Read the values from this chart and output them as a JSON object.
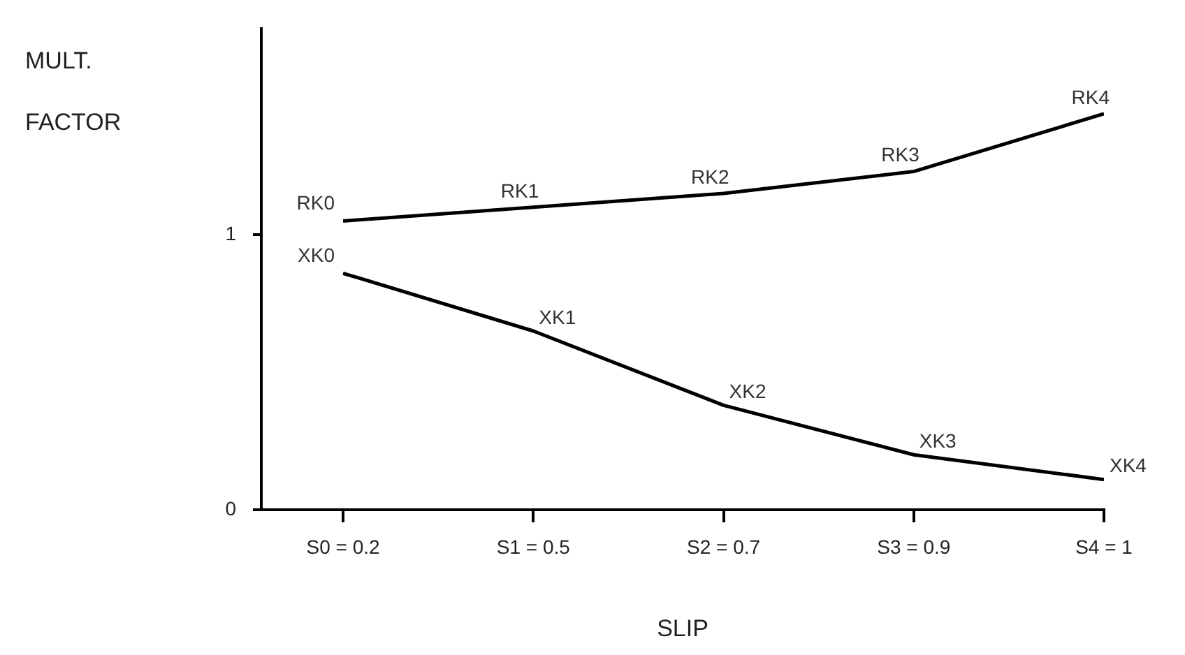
{
  "chart_data": {
    "type": "line",
    "xlabel": "SLIP",
    "ylabel": "MULT. FACTOR",
    "categories": [
      "S0 = 0.2",
      "S1 = 0.5",
      "S2 = 0.7",
      "S3 = 0.9",
      "S4 = 1"
    ],
    "series": [
      {
        "color": "#000000",
        "values": [
          1.05,
          1.1,
          1.15,
          1.23,
          1.44
        ]
      },
      {
        "color": "#000000",
        "values": [
          0.86,
          0.65,
          0.38,
          0.2,
          0.11
        ]
      }
    ],
    "ylim": [
      0,
      1.75
    ],
    "yticks": [
      0,
      1
    ],
    "grid": false,
    "legend": false,
    "marker": "none",
    "line_style": "solid",
    "annotations": [
      {
        "text": "RK0",
        "x": "S0 = 0.2",
        "y": 1.05
      },
      {
        "text": "RK1",
        "x": "S1 = 0.5",
        "y": 1.1
      },
      {
        "text": "RK2",
        "x": "S2 = 0.7",
        "y": 1.15
      },
      {
        "text": "RK3",
        "x": "S3 = 0.9",
        "y": 1.23
      },
      {
        "text": "RK4",
        "x": "S4 = 1",
        "y": 1.44
      },
      {
        "text": "XK0",
        "x": "S0 = 0.2",
        "y": 0.86
      },
      {
        "text": "XK1",
        "x": "S1 = 0.5",
        "y": 0.65
      },
      {
        "text": "XK2",
        "x": "S2 = 0.7",
        "y": 0.38
      },
      {
        "text": "XK3",
        "x": "S3 = 0.9",
        "y": 0.2
      },
      {
        "text": "XK4",
        "x": "S4 = 1",
        "y": 0.11
      }
    ]
  }
}
